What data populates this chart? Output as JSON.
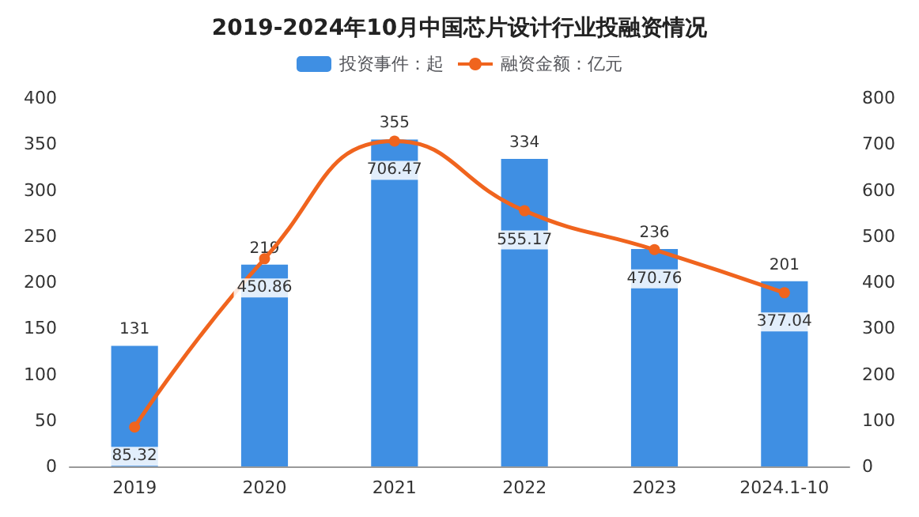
{
  "chart_data": {
    "type": "bar",
    "title": "2019-2024年10月中国芯片设计行业投融资情况",
    "categories": [
      "2019",
      "2020",
      "2021",
      "2022",
      "2023",
      "2024.1-10"
    ],
    "series": [
      {
        "name": "投资事件：起",
        "color": "#3f8fe3",
        "values": [
          131,
          219,
          355,
          334,
          236,
          201
        ]
      },
      {
        "name": "融资金额：亿元",
        "type": "line",
        "axis": "y2",
        "color": "#f0641e",
        "values": [
          85.32,
          450.86,
          706.47,
          555.17,
          470.76,
          377.04
        ]
      }
    ],
    "ylim": [
      0,
      400
    ],
    "yticks": [
      0,
      50,
      100,
      150,
      200,
      250,
      300,
      350,
      400
    ],
    "y2lim": [
      0,
      800
    ],
    "y2ticks": [
      0,
      100,
      200,
      300,
      400,
      500,
      600,
      700,
      800
    ],
    "data_labels": true,
    "legend": "top",
    "marker": "circle",
    "grid": false
  }
}
